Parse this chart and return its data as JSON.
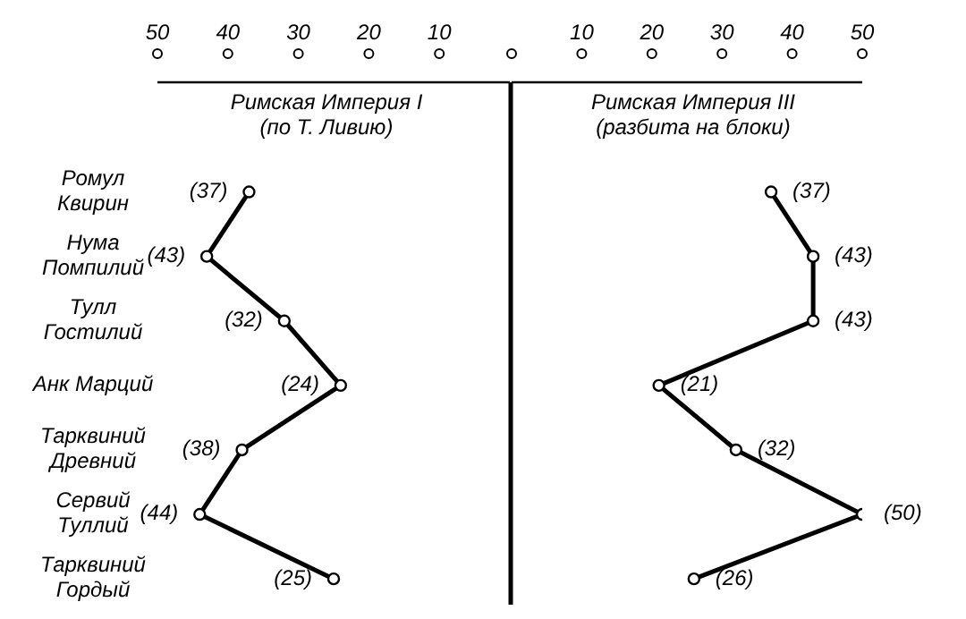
{
  "chart_data": [
    {
      "type": "line",
      "title": "Римская Империя I (по Т. Ливию)",
      "orientation": "horizontal",
      "marker": "circle",
      "categories": [
        "Ромул Квирин",
        "Нума Помпилий",
        "Тулл Гостилий",
        "Анк Марций",
        "Тарквиний Древний",
        "Сервий Туллий",
        "Тарквиний Гордый"
      ],
      "series": [
        {
          "color": "#000000",
          "values": [
            37,
            43,
            32,
            24,
            38,
            44,
            25
          ],
          "value_labels": [
            "(37)",
            "(43)",
            "(32)",
            "(24)",
            "(38)",
            "(44)",
            "(25)"
          ]
        }
      ],
      "xlim": [
        50,
        0
      ],
      "xticks": [
        50,
        40,
        30,
        20,
        10
      ],
      "ref_lines": [
        {
          "axis": "x",
          "value": 0
        }
      ]
    },
    {
      "type": "line",
      "title": "Римская Империя III (разбита на блоки)",
      "orientation": "horizontal",
      "marker": "circle",
      "tick_labels": "x",
      "series": [
        {
          "color": "#000000",
          "values": [
            37,
            43,
            43,
            21,
            32,
            50,
            26
          ],
          "value_labels": [
            "(37)",
            "(43)",
            "(43)",
            "(21)",
            "(32)",
            "(50)",
            "(26)"
          ]
        }
      ],
      "xlim": [
        0,
        50
      ],
      "xticks": [
        {
          "value": 0,
          "label": null
        },
        10,
        20,
        30,
        40,
        50
      ]
    }
  ]
}
